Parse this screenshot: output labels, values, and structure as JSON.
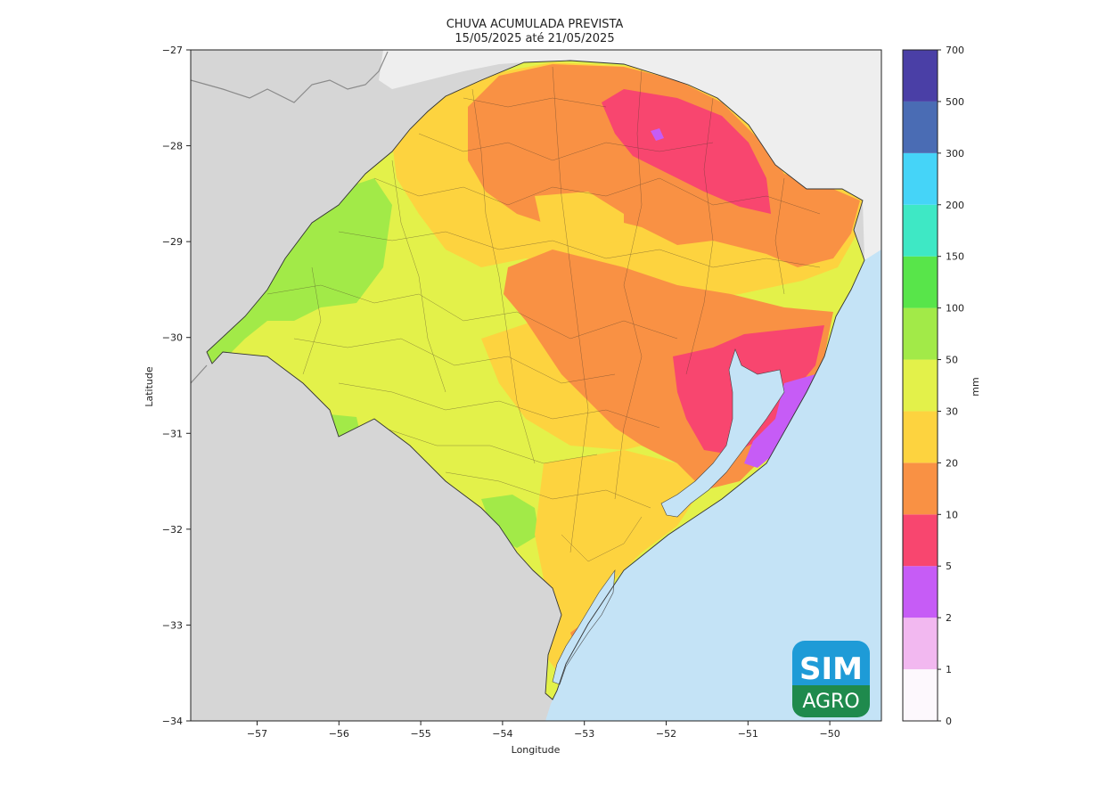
{
  "map": {
    "title_line1": "CHUVA ACUMULADA PREVISTA",
    "title_line2": "15/05/2025 até 21/05/2025",
    "xlabel": "Longitude",
    "ylabel": "Latitude",
    "x_ticks": [
      "−57",
      "−56",
      "−55",
      "−54",
      "−53",
      "−52",
      "−51",
      "−50"
    ],
    "y_ticks": [
      "−27",
      "−28",
      "−29",
      "−30",
      "−31",
      "−32",
      "−33",
      "−34"
    ],
    "colors": {
      "land_outside": "#d6d6d6",
      "land_north": "#eeeeee",
      "ocean": "#c4e3f6",
      "lagoon": "#c4e3f6"
    }
  },
  "colorbar": {
    "unit_label": "mm",
    "labels": [
      "0",
      "1",
      "2",
      "5",
      "10",
      "20",
      "30",
      "50",
      "100",
      "150",
      "200",
      "300",
      "500",
      "700"
    ],
    "bands": [
      {
        "from": "0",
        "to": "1",
        "color": "#fdf8fd"
      },
      {
        "from": "1",
        "to": "2",
        "color": "#f2b8f0"
      },
      {
        "from": "2",
        "to": "5",
        "color": "#c65cf6"
      },
      {
        "from": "5",
        "to": "10",
        "color": "#f8466f"
      },
      {
        "from": "10",
        "to": "20",
        "color": "#f99144"
      },
      {
        "from": "20",
        "to": "30",
        "color": "#fdd33f"
      },
      {
        "from": "30",
        "to": "50",
        "color": "#e3f14a"
      },
      {
        "from": "50",
        "to": "100",
        "color": "#a2ea48"
      },
      {
        "from": "100",
        "to": "150",
        "color": "#58e54a"
      },
      {
        "from": "150",
        "to": "200",
        "color": "#3ee8c5"
      },
      {
        "from": "200",
        "to": "300",
        "color": "#45d4f8"
      },
      {
        "from": "300",
        "to": "500",
        "color": "#4a6cb4"
      },
      {
        "from": "500",
        "to": "700",
        "color": "#4a3fa6"
      }
    ]
  },
  "logo": {
    "line1": "SIM",
    "line2": "AGRO",
    "color_top": "#1e9bd7",
    "color_bottom": "#1f8a4d"
  }
}
